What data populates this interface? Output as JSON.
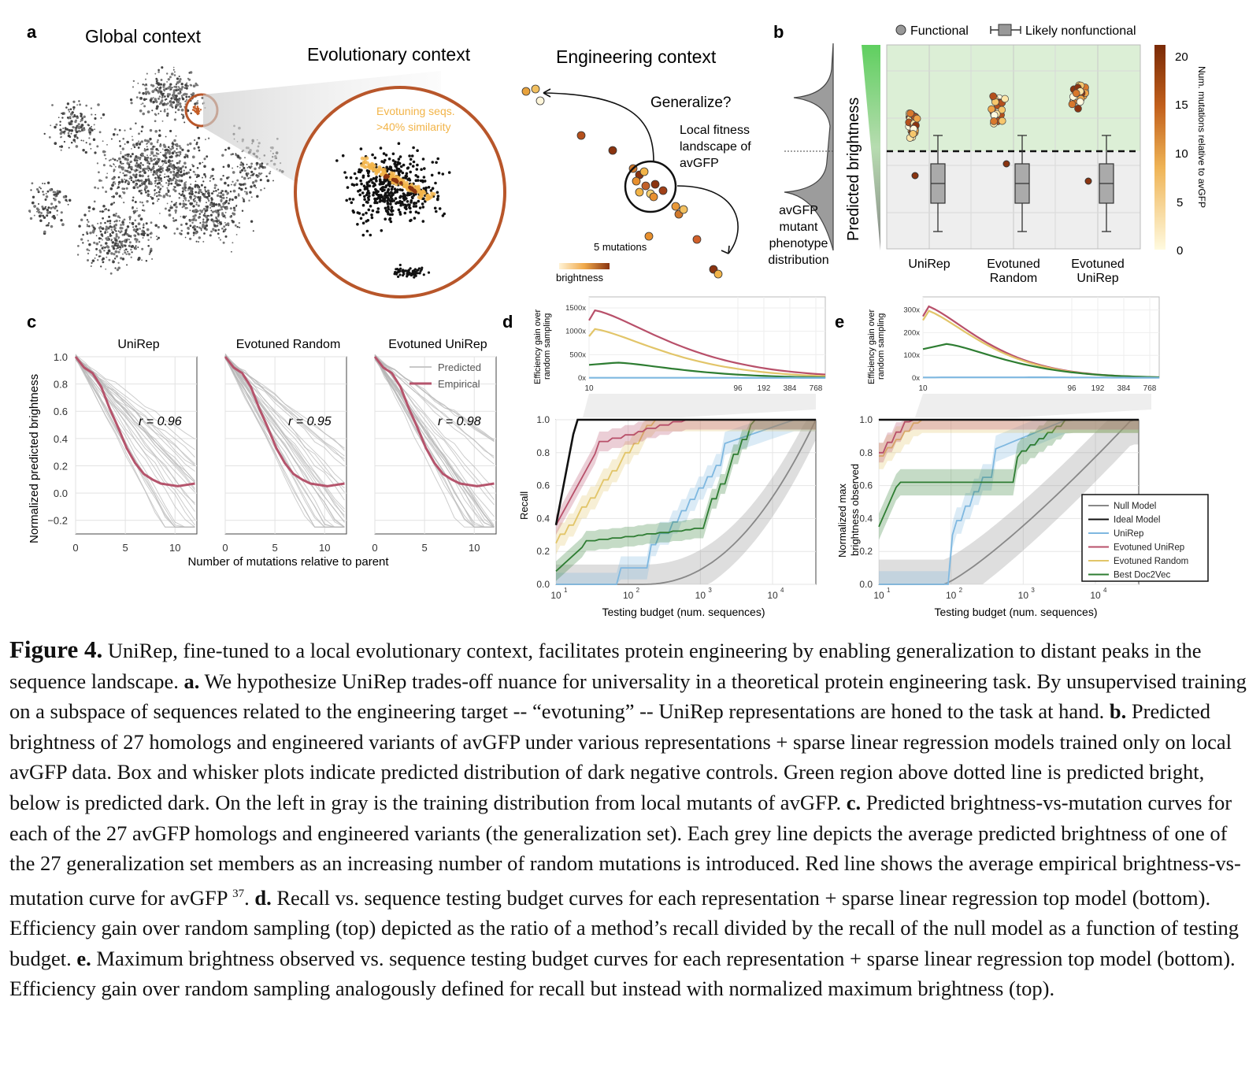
{
  "panel_letters": [
    "a",
    "b",
    "c",
    "d",
    "e"
  ],
  "panel_a": {
    "global_title": "Global context",
    "evolutionary_title": "Evolutionary context",
    "engineering_title": "Engineering context",
    "evotuning_label_1": "Evotuning seqs.",
    "evotuning_label_2": ">40% similarity",
    "generalize": "Generalize?",
    "local_fitness_1": "Local fitness",
    "local_fitness_2": "landscape of",
    "local_fitness_3": "avGFP",
    "five_mutations": "5 mutations",
    "brightness": "brightness"
  },
  "panel_b": {
    "legend_functional": "Functional",
    "legend_nonfunctional": "Likely nonfunctional",
    "ylabel": "Predicted brightness",
    "dist_label": [
      "avGFP",
      "mutant",
      "phenotype",
      "distribution"
    ],
    "categories": [
      "UniRep",
      "Evotuned Random",
      "Evotuned UniRep"
    ],
    "colorbar_label": "Num. mutations relative to avGFP",
    "colorbar_ticks": [
      "20",
      "15",
      "10",
      "5",
      "0"
    ],
    "colors": {
      "functional_region": "#dcefd6",
      "dark_region": "#eeeeee"
    }
  },
  "panel_c": {
    "titles": [
      "UniRep",
      "Evotuned Random",
      "Evotuned UniRep"
    ],
    "r_values": [
      "r = 0.96",
      "r = 0.95",
      "r = 0.98"
    ],
    "ylabel": "Normalized predicted brightness",
    "xlabel": "Number of mutations relative to parent",
    "yticks": [
      "1.0",
      "0.8",
      "0.6",
      "0.4",
      "0.2",
      "0.0",
      "−0.2"
    ],
    "xticks": [
      "0",
      "5",
      "10"
    ],
    "legend": [
      "Predicted",
      "Empirical"
    ]
  },
  "panel_d": {
    "top_ylabel": [
      "Efficiency gain over",
      "random sampling"
    ],
    "top_yticks": [
      "1500x",
      "1000x",
      "500x",
      "0x"
    ],
    "top_xticks": [
      "10",
      "96",
      "192",
      "384",
      "768"
    ],
    "ylabel": "Recall",
    "yticks": [
      "1.0",
      "0.8",
      "0.6",
      "0.4",
      "0.2",
      "0.0"
    ],
    "xlabel": "Testing budget (num. sequences)"
  },
  "panel_e": {
    "top_ylabel": [
      "Efficiency gain over",
      "random sampling"
    ],
    "top_yticks": [
      "300x",
      "200x",
      "100x",
      "0x"
    ],
    "top_xticks": [
      "10",
      "96",
      "192",
      "384",
      "768"
    ],
    "ylabel": [
      "Normalized max",
      "brightness observed"
    ],
    "yticks": [
      "1.0",
      "0.8",
      "0.6",
      "0.4",
      "0.2",
      "0.0"
    ],
    "xlabel": "Testing budget (num. sequences)",
    "legend": [
      "Null Model",
      "Ideal Model",
      "UniRep",
      "Evotuned UniRep",
      "Evotuned Random",
      "Best Doc2Vec"
    ]
  },
  "x_log_ticks": [
    "10",
    "10",
    "10",
    "10"
  ],
  "x_log_exps": [
    "1",
    "2",
    "3",
    "4"
  ],
  "series_colors": {
    "null": "#888888",
    "ideal": "#111111",
    "unirep": "#7fb8e0",
    "evotuned_unirep": "#b8506a",
    "evotuned_random": "#e2c569",
    "doc2vec": "#2e7d32"
  },
  "caption": {
    "fig_label": "Figure 4.",
    "s1": " UniRep, fine-tuned to a local evolutionary context, facilitates protein engineering by enabling generalization to distant peaks in the sequence landscape. ",
    "a": "a.",
    "s2": " We hypothesize UniRep trades-off nuance for universality in a theoretical protein engineering task.  By unsupervised training on a subspace of sequences related to the engineering target -- “evotuning” -- UniRep representations are honed to the task at hand. ",
    "b": "b.",
    "s3": " Predicted brightness of 27 homologs and engineered variants of avGFP under various representations + sparse linear regression models trained only on local avGFP data. Box and whisker plots indicate predicted distribution of dark negative controls. Green region above dotted line is predicted bright, below is predicted dark. On the left in gray is the training distribution from local mutants of avGFP.  ",
    "c": "c.",
    "s4": " Predicted brightness-vs-mutation curves for each of the 27 avGFP homologs and engineered variants (the generalization set). Each grey line depicts the average predicted brightness of one of the 27 generalization set members as an increasing number of random mutations is introduced. Red line shows the average empirical brightness-vs-mutation curve for avGFP ",
    "ref": "37",
    "s5": ". ",
    "d": "d.",
    "s6": " Recall vs. sequence testing budget curves for each representation + sparse linear regression top model (bottom). Efficiency gain over random sampling (top) depicted as the ratio of a method’s recall divided by the recall of the null model as a function of testing budget. ",
    "e": "e.",
    "s7": " Maximum brightness observed vs. sequence testing budget curves for each representation + sparse linear regression top model (bottom). Efficiency gain over random sampling analogously defined for recall but instead with normalized maximum brightness (top)."
  }
}
